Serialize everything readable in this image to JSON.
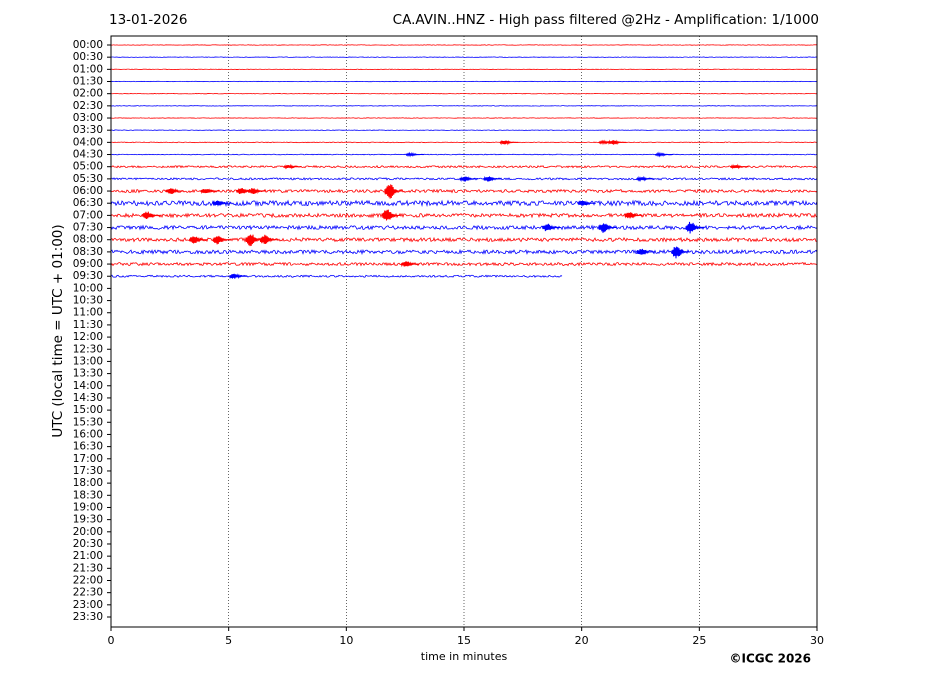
{
  "chart_data": {
    "type": "helicorder",
    "date": "13-01-2026",
    "title": "CA.AVIN..HNZ - High pass filtered @2Hz - Amplification: 1/1000",
    "xlabel": "time in minutes",
    "ylabel": "UTC (local time = UTC + 01:00)",
    "copyright": "©ICGC 2026",
    "xlim": [
      0,
      30
    ],
    "xticks": [
      0,
      5,
      10,
      15,
      20,
      25,
      30
    ],
    "grid": true,
    "categories": [
      "00:00",
      "00:30",
      "01:00",
      "01:30",
      "02:00",
      "02:30",
      "03:00",
      "03:30",
      "04:00",
      "04:30",
      "05:00",
      "05:30",
      "06:00",
      "06:30",
      "07:00",
      "07:30",
      "08:00",
      "08:30",
      "09:00",
      "09:30",
      "10:00",
      "10:30",
      "11:00",
      "11:30",
      "12:00",
      "12:30",
      "13:00",
      "13:30",
      "14:00",
      "14:30",
      "15:00",
      "15:30",
      "16:00",
      "16:30",
      "17:00",
      "17:30",
      "18:00",
      "18:30",
      "19:00",
      "19:30",
      "20:00",
      "20:30",
      "21:00",
      "21:30",
      "22:00",
      "22:30",
      "23:00",
      "23:30"
    ],
    "traces": [
      {
        "color": "#ff0000",
        "end": 30,
        "noise": 0.02,
        "events": []
      },
      {
        "color": "#0000ff",
        "end": 30,
        "noise": 0.02,
        "events": []
      },
      {
        "color": "#ff0000",
        "end": 30,
        "noise": 0.02,
        "events": []
      },
      {
        "color": "#0000ff",
        "end": 30,
        "noise": 0.02,
        "events": []
      },
      {
        "color": "#ff0000",
        "end": 30,
        "noise": 0.02,
        "events": []
      },
      {
        "color": "#0000ff",
        "end": 30,
        "noise": 0.02,
        "events": []
      },
      {
        "color": "#ff0000",
        "end": 30,
        "noise": 0.02,
        "events": []
      },
      {
        "color": "#0000ff",
        "end": 30,
        "noise": 0.02,
        "events": []
      },
      {
        "color": "#ff0000",
        "end": 30,
        "noise": 0.03,
        "events": [
          [
            16.7,
            0.15
          ],
          [
            20.9,
            0.1
          ],
          [
            21.3,
            0.2
          ]
        ]
      },
      {
        "color": "#0000ff",
        "end": 30,
        "noise": 0.03,
        "events": [
          [
            12.7,
            0.1
          ],
          [
            23.3,
            0.1
          ]
        ]
      },
      {
        "color": "#ff0000",
        "end": 30,
        "noise": 0.08,
        "events": [
          [
            7.5,
            0.12
          ],
          [
            26.5,
            0.12
          ]
        ]
      },
      {
        "color": "#0000ff",
        "end": 30,
        "noise": 0.08,
        "events": [
          [
            15,
            0.2
          ],
          [
            16,
            0.2
          ],
          [
            22.5,
            0.12
          ]
        ]
      },
      {
        "color": "#ff0000",
        "end": 30,
        "noise": 0.12,
        "events": [
          [
            2.5,
            0.25
          ],
          [
            4,
            0.2
          ],
          [
            5.5,
            0.25
          ],
          [
            6,
            0.25
          ],
          [
            11.8,
            0.6
          ]
        ]
      },
      {
        "color": "#0000ff",
        "end": 30,
        "noise": 0.2,
        "events": [
          [
            4.5,
            0.2
          ],
          [
            20,
            0.2
          ]
        ]
      },
      {
        "color": "#ff0000",
        "end": 30,
        "noise": 0.15,
        "events": [
          [
            1.5,
            0.3
          ],
          [
            11.7,
            0.5
          ],
          [
            22,
            0.25
          ]
        ]
      },
      {
        "color": "#0000ff",
        "end": 30,
        "noise": 0.15,
        "events": [
          [
            18.5,
            0.3
          ],
          [
            20.9,
            0.4
          ],
          [
            24.6,
            0.45
          ]
        ]
      },
      {
        "color": "#ff0000",
        "end": 30,
        "noise": 0.15,
        "events": [
          [
            3.5,
            0.3
          ],
          [
            4.5,
            0.35
          ],
          [
            5.9,
            0.5
          ],
          [
            6.5,
            0.4
          ]
        ]
      },
      {
        "color": "#0000ff",
        "end": 30,
        "noise": 0.15,
        "events": [
          [
            22.5,
            0.25
          ],
          [
            24,
            0.5
          ]
        ]
      },
      {
        "color": "#ff0000",
        "end": 30,
        "noise": 0.12,
        "events": [
          [
            12.5,
            0.25
          ]
        ]
      },
      {
        "color": "#0000ff",
        "end": 19.2,
        "noise": 0.08,
        "events": [
          [
            5.2,
            0.2
          ]
        ]
      }
    ]
  }
}
